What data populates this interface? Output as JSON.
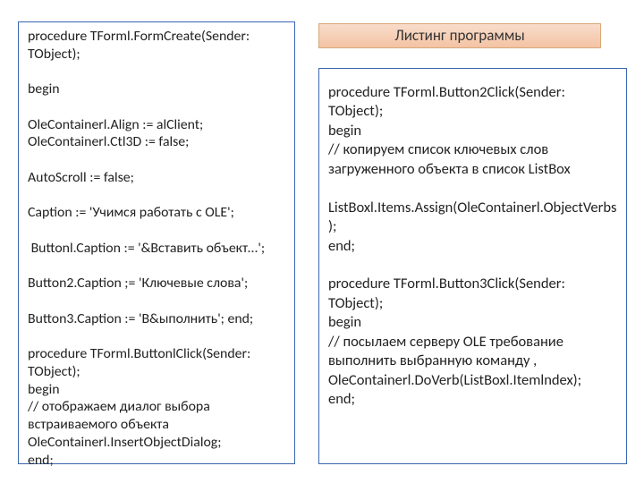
{
  "layout": {
    "left_box": {
      "border_color": "#3a66b0",
      "bg": "#ffffff"
    },
    "right_box": {
      "border_color": "#3a66b0",
      "bg": "#ffffff"
    },
    "header": {
      "bg_gradient_top": "#f8dccb",
      "bg_gradient_bottom": "#f4c3a3",
      "border": "#d9a87b"
    }
  },
  "header": {
    "text": "Листинг программы"
  },
  "left_code": "procedure TForml.FormCreate(Sender: TObject);\n\nbegin\n\nOleContainerl.Align := alClient; OleContainerl.Ctl3D := false;\n\nAutoScroll := false;\n\nCaption := 'Учимся работать с OLE';\n\n Buttonl.Caption := '&Вставить объект...';\n\nButton2.Caption ;= 'Ключевые слова';\n\nButton3.Caption := 'В&ыполнить'; end;\n\nprocedure TForml.ButtonlClick(Sender: TObject);\nbegin\n// отображаем диалог выбора встраиваемого объекта OleContainerl.InsertObjectDialog;\nend;",
  "right_code": "procedure TForml.Button2Click(Sender: TObject);\nbegin\n// копируем список ключевых слов загруженного объекта в список ListBox\n\nListBoxl.Items.Assign(OleContainerl.ObjectVerbs);\nend;\n\nprocedure TForml.Button3Click(Sender: TObject);\nbegin\n// посылаем серверу OLE требование выполнить выбранную команду , OleContainerl.DoVerb(ListBoxl.Itemlndex);\nend;"
}
